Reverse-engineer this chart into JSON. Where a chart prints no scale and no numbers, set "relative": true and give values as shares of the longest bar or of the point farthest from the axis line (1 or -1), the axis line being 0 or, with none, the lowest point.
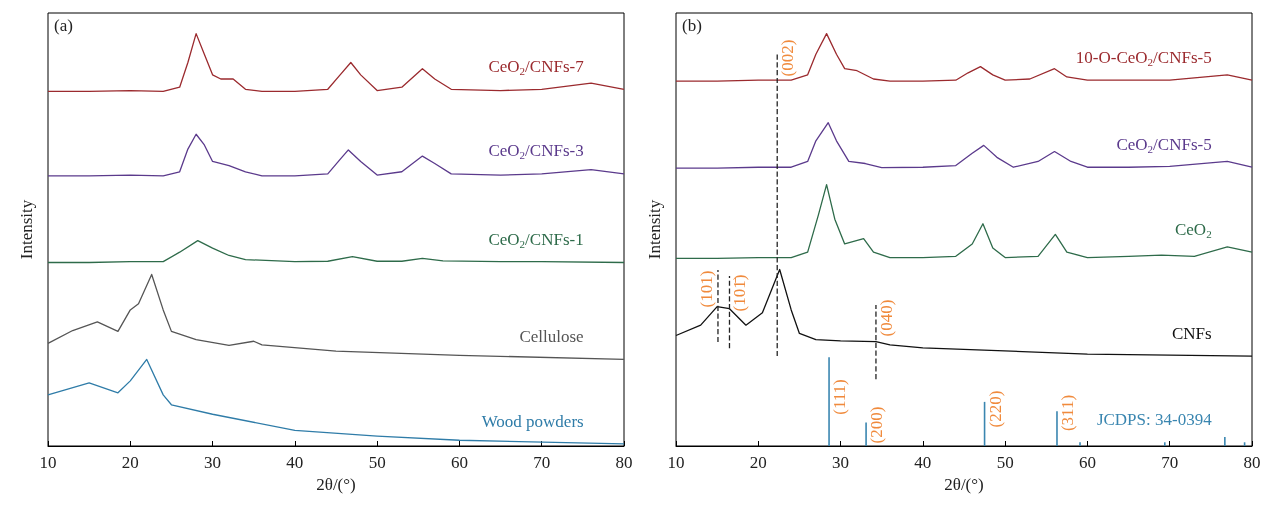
{
  "chart_data": [
    {
      "type": "line",
      "xlabel": "2θ/(°)",
      "ylabel": "Intensity",
      "xlim": [
        10,
        80
      ],
      "xticks": [
        10,
        20,
        30,
        40,
        50,
        60,
        70,
        80
      ],
      "relative": true,
      "marker": "none",
      "grid": false,
      "annotations": [
        "(a)"
      ],
      "series": [
        {
          "name": "CeO$_{2}$/CNFs-7",
          "color": "#9b2a2e",
          "x": [
            10,
            15,
            20,
            24,
            26,
            27,
            28,
            29,
            30,
            31,
            32.5,
            34,
            36,
            40,
            44,
            45.5,
            46.8,
            48,
            50,
            53,
            55.5,
            57,
            59,
            65,
            70,
            76,
            80
          ],
          "values": [
            0.86,
            0.86,
            0.862,
            0.86,
            0.87,
            0.93,
            1.0,
            0.95,
            0.9,
            0.89,
            0.89,
            0.865,
            0.86,
            0.86,
            0.865,
            0.9,
            0.93,
            0.9,
            0.862,
            0.87,
            0.915,
            0.89,
            0.865,
            0.862,
            0.865,
            0.88,
            0.865
          ]
        },
        {
          "name": "CeO$_{2}$/CNFs-3",
          "color": "#5b3a8c",
          "x": [
            10,
            15,
            20,
            24,
            26,
            27,
            28,
            29,
            30,
            32,
            34,
            36,
            40,
            44,
            45.5,
            46.5,
            48,
            50,
            53,
            55.5,
            57,
            59,
            65,
            70,
            76,
            80
          ],
          "values": [
            0.655,
            0.655,
            0.657,
            0.655,
            0.665,
            0.72,
            0.756,
            0.73,
            0.69,
            0.68,
            0.665,
            0.655,
            0.655,
            0.66,
            0.695,
            0.718,
            0.69,
            0.657,
            0.665,
            0.703,
            0.685,
            0.66,
            0.657,
            0.66,
            0.67,
            0.66
          ]
        },
        {
          "name": "CeO$_{2}$/CNFs-1",
          "color": "#2e6b4a",
          "x": [
            10,
            15,
            20,
            24,
            26,
            28.2,
            30,
            32,
            34,
            40,
            44,
            47,
            50,
            53,
            55.5,
            58,
            65,
            70,
            80
          ],
          "values": [
            0.445,
            0.445,
            0.447,
            0.447,
            0.47,
            0.498,
            0.48,
            0.462,
            0.452,
            0.447,
            0.448,
            0.459,
            0.448,
            0.448,
            0.455,
            0.449,
            0.447,
            0.447,
            0.445
          ]
        },
        {
          "name": "Cellulose",
          "color": "#555555",
          "x": [
            10,
            13,
            16,
            18.5,
            20,
            21,
            22.6,
            24,
            25,
            28,
            32,
            35,
            36,
            45,
            60,
            80
          ],
          "values": [
            0.249,
            0.28,
            0.301,
            0.278,
            0.33,
            0.345,
            0.416,
            0.33,
            0.278,
            0.258,
            0.244,
            0.254,
            0.245,
            0.23,
            0.22,
            0.21
          ]
        },
        {
          "name": "Wood powders",
          "color": "#2f7ca8",
          "x": [
            10,
            15,
            18.5,
            20,
            22,
            24,
            25,
            30,
            40,
            50,
            60,
            80
          ],
          "values": [
            0.124,
            0.153,
            0.129,
            0.158,
            0.21,
            0.124,
            0.1,
            0.077,
            0.038,
            0.024,
            0.014,
            0.005
          ]
        }
      ]
    },
    {
      "type": "line",
      "xlabel": "2θ/(°)",
      "ylabel": "Intensity",
      "xlim": [
        10,
        80
      ],
      "xticks": [
        10,
        20,
        30,
        40,
        50,
        60,
        70,
        80
      ],
      "relative": true,
      "marker": "none",
      "grid": false,
      "annotations": [
        "(b)",
        {
          "text": "(002)",
          "x": 22.3,
          "y": 0.94
        },
        {
          "text": "(101)",
          "x": 15.1,
          "y": 0.38
        },
        {
          "text": "(101̄)",
          "x": 16.5,
          "y": 0.37
        },
        {
          "text": "(040)",
          "x": 34.3,
          "y": 0.31
        },
        {
          "text": "(111)",
          "x": 28.6,
          "y": 0.12
        },
        {
          "text": "(200)",
          "x": 33.1,
          "y": 0.05
        },
        {
          "text": "(220)",
          "x": 47.5,
          "y": 0.09
        },
        {
          "text": "(311)",
          "x": 56.3,
          "y": 0.08
        }
      ],
      "series": [
        {
          "name": "10-O-CeO$_{2}$/CNFs-5",
          "color": "#9b2a2e",
          "x": [
            10,
            15,
            20,
            24,
            26,
            27,
            28.3,
            29.5,
            30.5,
            32,
            34,
            36,
            40,
            44,
            45.5,
            47,
            48.5,
            50,
            53,
            56,
            57.5,
            60,
            65,
            70,
            77,
            80
          ],
          "values": [
            0.885,
            0.885,
            0.887,
            0.887,
            0.9,
            0.95,
            1.0,
            0.95,
            0.915,
            0.91,
            0.89,
            0.885,
            0.885,
            0.887,
            0.905,
            0.92,
            0.9,
            0.887,
            0.89,
            0.915,
            0.895,
            0.887,
            0.887,
            0.887,
            0.9,
            0.887
          ]
        },
        {
          "name": "CeO$_{2}$/CNFs-5",
          "color": "#5b3a8c",
          "x": [
            10,
            15,
            20,
            24,
            26,
            27,
            28.5,
            29.5,
            31,
            33,
            35,
            40,
            44,
            46,
            47.4,
            49,
            51,
            54,
            56,
            58,
            60,
            65,
            70,
            77,
            80
          ],
          "values": [
            0.674,
            0.674,
            0.676,
            0.676,
            0.69,
            0.74,
            0.784,
            0.74,
            0.69,
            0.685,
            0.675,
            0.676,
            0.68,
            0.71,
            0.729,
            0.7,
            0.676,
            0.69,
            0.714,
            0.69,
            0.676,
            0.676,
            0.678,
            0.69,
            0.676
          ]
        },
        {
          "name": "CeO$_{2}$",
          "color": "#2e6b4a",
          "x": [
            10,
            15,
            20,
            24,
            26,
            27.3,
            28.3,
            29.3,
            30.5,
            32.8,
            34,
            36,
            40,
            44,
            46,
            47.3,
            48.5,
            50,
            54,
            56.1,
            57.5,
            60,
            65,
            69,
            73,
            77,
            80
          ],
          "values": [
            0.455,
            0.455,
            0.457,
            0.457,
            0.47,
            0.56,
            0.634,
            0.55,
            0.49,
            0.503,
            0.47,
            0.457,
            0.457,
            0.46,
            0.49,
            0.539,
            0.48,
            0.457,
            0.46,
            0.513,
            0.47,
            0.457,
            0.46,
            0.463,
            0.46,
            0.483,
            0.47
          ]
        },
        {
          "name": "CNFs",
          "color": "#111111",
          "x": [
            10,
            13,
            15,
            16.5,
            18.5,
            20.5,
            22.6,
            24,
            25,
            27,
            30,
            34.3,
            36,
            40,
            60,
            80
          ],
          "values": [
            0.268,
            0.293,
            0.338,
            0.333,
            0.293,
            0.323,
            0.428,
            0.33,
            0.273,
            0.258,
            0.255,
            0.253,
            0.245,
            0.238,
            0.223,
            0.218
          ]
        },
        {
          "type": "bar",
          "name": "JCDPS: 34-0394",
          "color": "#3a86b0",
          "x": [
            28.6,
            33.1,
            47.5,
            56.3,
            59.1,
            69.4,
            76.7,
            79.1
          ],
          "values": [
            0.215,
            0.057,
            0.107,
            0.084,
            0.009,
            0.009,
            0.022,
            0.009
          ]
        },
        {
          "color": "#222222",
          "line_style": "dashed",
          "x": [
            22.3,
            22.3
          ],
          "values": [
            0.218,
            0.95
          ]
        },
        {
          "color": "#222222",
          "line_style": "dashed",
          "x": [
            15.1,
            15.1
          ],
          "values": [
            0.252,
            0.427
          ]
        },
        {
          "color": "#222222",
          "line_style": "dashed",
          "x": [
            16.5,
            16.5
          ],
          "values": [
            0.237,
            0.412
          ]
        },
        {
          "color": "#222222",
          "line_style": "dashed",
          "x": [
            34.3,
            34.3
          ],
          "values": [
            0.162,
            0.342
          ]
        }
      ]
    }
  ]
}
